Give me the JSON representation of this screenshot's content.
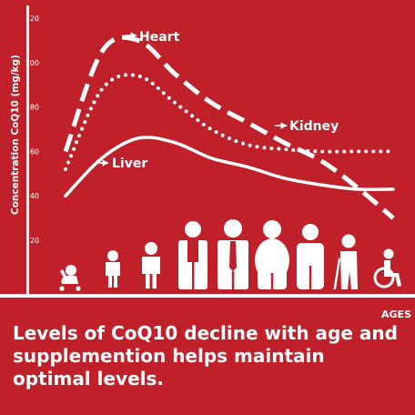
{
  "chart_data": {
    "type": "line",
    "ylabel": "Concentration CoQ10 (mg/kg)",
    "xlabel": "AGES",
    "yticks": [
      20,
      40,
      60,
      80,
      100,
      120
    ],
    "ylim": [
      0,
      120
    ],
    "x_categories": [
      "infant",
      "toddler",
      "child",
      "teen",
      "young adult",
      "adult",
      "middle aged",
      "older adult",
      "elderly",
      "wheelchair user"
    ],
    "series": [
      {
        "name": "Heart",
        "style": "dashed",
        "values": [
          60,
          105,
          110,
          95,
          82,
          73,
          64,
          56,
          44,
          30
        ]
      },
      {
        "name": "Kidney",
        "style": "dotted",
        "values": [
          52,
          88,
          94,
          82,
          70,
          63,
          61,
          60,
          60,
          60
        ]
      },
      {
        "name": "Liver",
        "style": "solid",
        "values": [
          40,
          57,
          66,
          64,
          57,
          53,
          48,
          45,
          43,
          43
        ]
      }
    ],
    "colors": {
      "background": "#c0202a",
      "foreground": "#ffffff"
    },
    "grid": false
  },
  "caption": "Levels of CoQ10 decline with age and supplemention helps maintain optimal levels."
}
